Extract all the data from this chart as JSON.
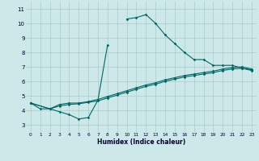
{
  "xlabel": "Humidex (Indice chaleur)",
  "xlim": [
    -0.5,
    23.5
  ],
  "ylim": [
    2.5,
    11.5
  ],
  "xticks": [
    0,
    1,
    2,
    3,
    4,
    5,
    6,
    7,
    8,
    9,
    10,
    11,
    12,
    13,
    14,
    15,
    16,
    17,
    18,
    19,
    20,
    21,
    22,
    23
  ],
  "yticks": [
    3,
    4,
    5,
    6,
    7,
    8,
    9,
    10,
    11
  ],
  "bg_color": "#cce8e8",
  "grid_color": "#aacccc",
  "line_color": "#006666",
  "line1_x": [
    0,
    1,
    2,
    3,
    4,
    5,
    6,
    7,
    8,
    9,
    10,
    11,
    12,
    13,
    14,
    15,
    16,
    17,
    18,
    19,
    20,
    21,
    22,
    23
  ],
  "line1_y": [
    4.5,
    4.1,
    4.1,
    3.9,
    3.7,
    3.4,
    3.5,
    4.7,
    8.5,
    null,
    10.3,
    10.4,
    10.6,
    10.0,
    9.2,
    8.6,
    8.0,
    7.5,
    7.5,
    7.1,
    7.1,
    7.1,
    6.9,
    6.8
  ],
  "line2_x": [
    0,
    2,
    3,
    4,
    5,
    6,
    7,
    8,
    9,
    10,
    11,
    12,
    13,
    14,
    15,
    16,
    17,
    18,
    19,
    20,
    21,
    22,
    23
  ],
  "line2_y": [
    4.5,
    4.1,
    4.4,
    4.5,
    4.5,
    4.6,
    4.75,
    4.95,
    5.15,
    5.35,
    5.55,
    5.75,
    5.9,
    6.1,
    6.25,
    6.4,
    6.5,
    6.6,
    6.7,
    6.85,
    6.95,
    7.0,
    6.85
  ],
  "line3_x": [
    0,
    2,
    3,
    4,
    5,
    6,
    7,
    8,
    9,
    10,
    11,
    12,
    13,
    14,
    15,
    16,
    17,
    18,
    19,
    20,
    21,
    22,
    23
  ],
  "line3_y": [
    4.5,
    4.1,
    4.3,
    4.4,
    4.45,
    4.55,
    4.65,
    4.85,
    5.05,
    5.25,
    5.45,
    5.65,
    5.8,
    6.0,
    6.15,
    6.3,
    6.4,
    6.5,
    6.6,
    6.75,
    6.85,
    6.9,
    6.75
  ]
}
